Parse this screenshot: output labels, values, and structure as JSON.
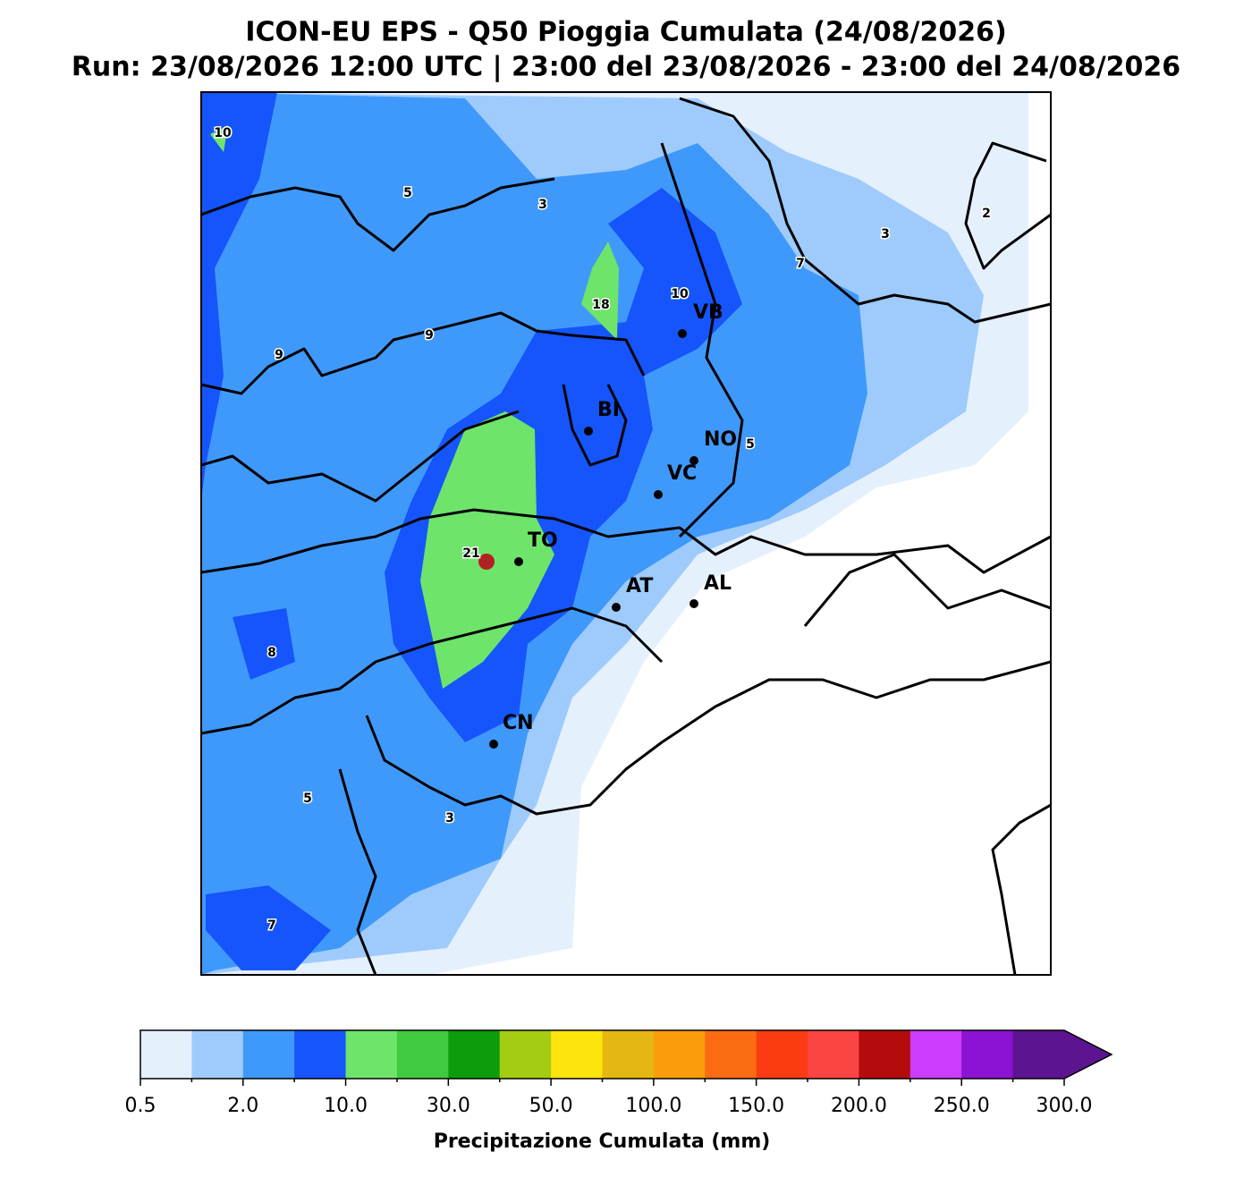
{
  "header": {
    "title": "ICON-EU EPS - Q50 Pioggia Cumulata (24/08/2026)",
    "subtitle": "Run: 23/08/2026 12:00 UTC | 23:00 del 23/08/2026 - 23:00 del 24/08/2026"
  },
  "cities": [
    "VB",
    "BI",
    "NO",
    "VC",
    "TO",
    "AT",
    "AL",
    "CN"
  ],
  "contour_labels": [
    10,
    5,
    3,
    2,
    3,
    7,
    10,
    18,
    9,
    9,
    5,
    21,
    8,
    5,
    3,
    7
  ],
  "colorbar": {
    "label": "Precipitazione Cumulata (mm)",
    "colors": [
      "#e5f0fd",
      "#9ecbfb",
      "#3f99fb",
      "#1555fb",
      "#6ee46a",
      "#3fca3f",
      "#0c9c0c",
      "#a3cc12",
      "#fde40c",
      "#e4b712",
      "#fb9c0c",
      "#fb6c12",
      "#fb3c12",
      "#fb4444",
      "#b40c0c",
      "#cc3cfb",
      "#8c12d4",
      "#5c1490"
    ],
    "tick_labels": [
      "0.5",
      "2.0",
      "10.0",
      "30.0",
      "50.0",
      "100.0",
      "150.0",
      "200.0",
      "250.0",
      "300.0"
    ]
  }
}
